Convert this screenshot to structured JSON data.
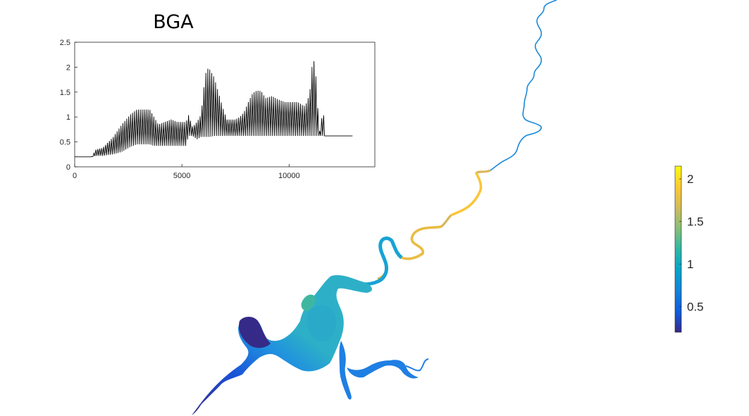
{
  "chart_data": [
    {
      "type": "line",
      "title": "BGA",
      "xlabel": "",
      "ylabel": "",
      "xlim": [
        0,
        14000
      ],
      "ylim": [
        0,
        2.5
      ],
      "x_ticks": [
        "0",
        "5000",
        "10000"
      ],
      "x_tick_values": [
        0,
        5000,
        10000
      ],
      "y_ticks": [
        "0",
        "0.5",
        "1",
        "1.5",
        "2",
        "2.5"
      ],
      "y_tick_values": [
        0,
        0.5,
        1,
        1.5,
        2,
        2.5
      ],
      "grid": false,
      "series": [
        {
          "color": "#000000",
          "upper_envelope": {
            "x": [
              0,
              800,
              1000,
              1300,
              1800,
              2200,
              2600,
              2900,
              3200,
              3500,
              3700,
              3900,
              4200,
              4500,
              4800,
              5000,
              5200,
              5300,
              5500,
              5700,
              5900,
              6000,
              6150,
              6300,
              6500,
              6700,
              6900,
              7100,
              7300,
              7500,
              7700,
              7900,
              8100,
              8300,
              8500,
              8700,
              8900,
              9200,
              9500,
              9800,
              10100,
              10400,
              10700,
              10850,
              11000,
              11100,
              11200,
              11300,
              11400,
              11500,
              11600,
              11700,
              12000,
              13000
            ],
            "y": [
              0.2,
              0.2,
              0.35,
              0.38,
              0.6,
              0.85,
              1.05,
              1.15,
              1.15,
              1.15,
              1.0,
              0.85,
              0.9,
              0.95,
              0.9,
              0.9,
              0.9,
              1.05,
              0.8,
              0.9,
              1.05,
              1.5,
              1.98,
              1.95,
              1.8,
              1.5,
              1.2,
              0.95,
              0.95,
              0.95,
              1.0,
              1.1,
              1.3,
              1.48,
              1.53,
              1.52,
              1.38,
              1.42,
              1.35,
              1.3,
              1.3,
              1.3,
              1.22,
              1.3,
              1.6,
              2.18,
              2.08,
              1.55,
              0.62,
              0.95,
              1.08,
              0.62,
              0.62,
              0.62
            ]
          },
          "lower_envelope": {
            "x": [
              0,
              800,
              1000,
              1300,
              1800,
              2200,
              2600,
              2900,
              3200,
              3500,
              3700,
              3900,
              4200,
              4500,
              4800,
              5000,
              5200,
              5300,
              5500,
              5700,
              5900,
              6000,
              6150,
              6300,
              6500,
              6700,
              6900,
              7100,
              7300,
              7500,
              7700,
              7900,
              8100,
              8300,
              8500,
              8700,
              8900,
              9200,
              9500,
              9800,
              10100,
              10400,
              10700,
              10850,
              11000,
              11100,
              11200,
              11300,
              11400,
              11500,
              11600,
              11700,
              12000,
              13000
            ],
            "y": [
              0.2,
              0.2,
              0.22,
              0.22,
              0.25,
              0.3,
              0.4,
              0.45,
              0.45,
              0.45,
              0.42,
              0.42,
              0.42,
              0.42,
              0.42,
              0.42,
              0.42,
              0.62,
              0.62,
              0.55,
              0.6,
              0.6,
              0.6,
              0.6,
              0.62,
              0.62,
              0.62,
              0.62,
              0.62,
              0.62,
              0.62,
              0.62,
              0.62,
              0.62,
              0.62,
              0.62,
              0.62,
              0.62,
              0.62,
              0.62,
              0.62,
              0.62,
              0.62,
              0.62,
              0.62,
              0.62,
              0.62,
              0.62,
              0.62,
              0.62,
              0.62,
              0.62,
              0.62,
              0.62
            ]
          }
        }
      ]
    },
    {
      "type": "heatmap",
      "colormap": "parula",
      "colorbar_range": [
        0.2,
        2.15
      ],
      "colorbar_ticks": [
        "0.5",
        "1",
        "1.5",
        "2"
      ],
      "colorbar_tick_values": [
        0.5,
        1,
        1.5,
        2
      ],
      "colors": [
        "#352a87",
        "#0f5cdd",
        "#1481d6",
        "#06a4ca",
        "#2eb7a4",
        "#87bf77",
        "#d1bb59",
        "#fec832",
        "#f9fb0e"
      ]
    }
  ]
}
